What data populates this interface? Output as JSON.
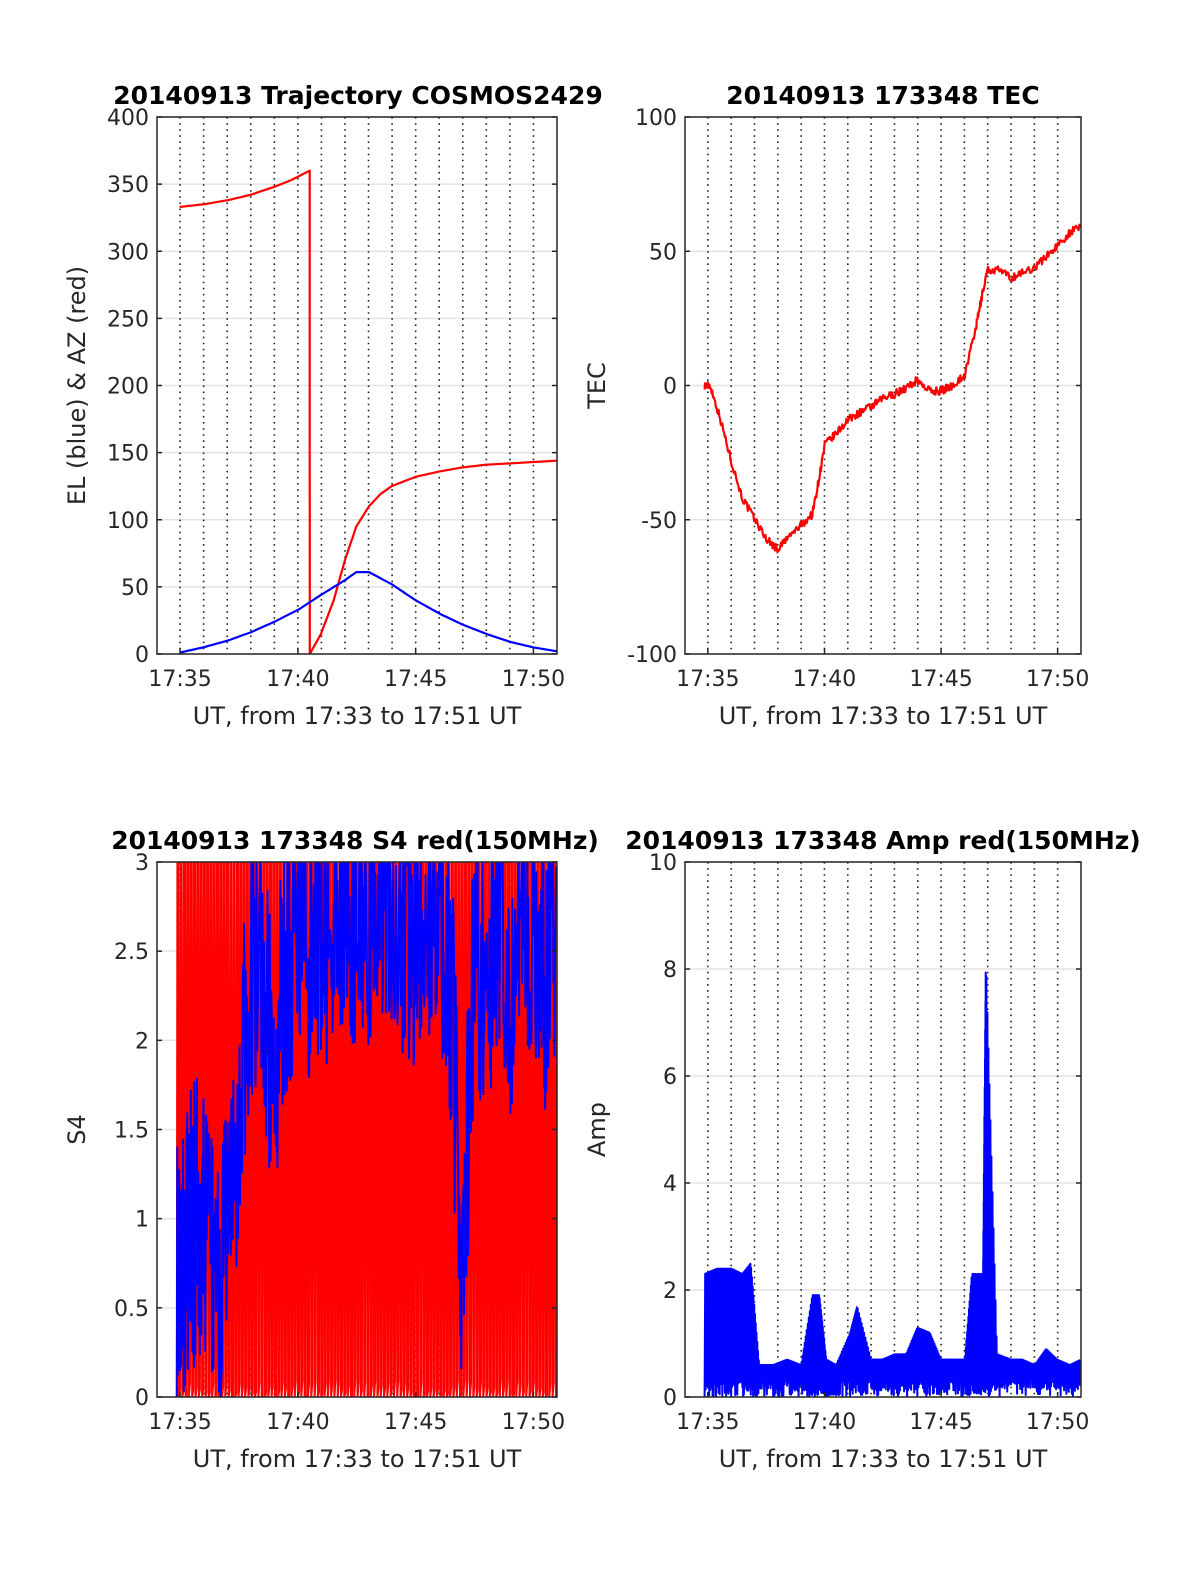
{
  "chart_data": [
    {
      "type": "line",
      "title": "20140913 Trajectory COSMOS2429",
      "xlabel": "UT, from 17:33 to 17:51 UT",
      "ylabel": "EL (blue) & AZ (red)",
      "xlim": [
        17.567,
        17.85
      ],
      "ylim": [
        0,
        400
      ],
      "x_ticks": [
        17.5833,
        17.6667,
        17.75,
        17.8333
      ],
      "x_tick_labels": [
        "17:35",
        "17:40",
        "17:45",
        "17:50"
      ],
      "y_ticks": [
        0,
        50,
        100,
        150,
        200,
        250,
        300,
        350,
        400
      ],
      "y_tick_labels": [
        "0",
        "50",
        "100",
        "150",
        "200",
        "250",
        "300",
        "350",
        "400"
      ],
      "grid": {
        "x": "dotted",
        "y": "solid"
      },
      "series": [
        {
          "color": "#ff0000",
          "x": [
            17.583,
            17.6,
            17.617,
            17.633,
            17.65,
            17.662,
            17.675,
            17.6751,
            17.683,
            17.692,
            17.7,
            17.708,
            17.717,
            17.725,
            17.733,
            17.75,
            17.767,
            17.783,
            17.8,
            17.817,
            17.833,
            17.85
          ],
          "values": [
            333,
            335,
            338,
            342,
            348,
            353,
            360,
            0,
            15,
            40,
            70,
            95,
            110,
            119,
            125,
            132,
            136,
            139,
            141,
            142,
            143,
            144
          ]
        },
        {
          "color": "#0000ff",
          "x": [
            17.583,
            17.6,
            17.617,
            17.633,
            17.65,
            17.667,
            17.683,
            17.7,
            17.708,
            17.717,
            17.733,
            17.75,
            17.767,
            17.783,
            17.8,
            17.817,
            17.833,
            17.85
          ],
          "values": [
            1,
            5,
            10,
            16,
            24,
            33,
            44,
            55,
            61,
            61,
            52,
            40,
            30,
            22,
            15,
            9,
            5,
            2
          ]
        }
      ]
    },
    {
      "type": "line",
      "title": "20140913 173348 TEC",
      "xlabel": "UT, from 17:33 to 17:51 UT",
      "ylabel": "TEC",
      "xlim": [
        17.567,
        17.85
      ],
      "ylim": [
        -100,
        100
      ],
      "x_ticks": [
        17.5833,
        17.6667,
        17.75,
        17.8333
      ],
      "x_tick_labels": [
        "17:35",
        "17:40",
        "17:45",
        "17:50"
      ],
      "y_ticks": [
        -100,
        -50,
        0,
        50,
        100
      ],
      "y_tick_labels": [
        "-100",
        "-50",
        "0",
        "50",
        "100"
      ],
      "grid": {
        "x": "dotted",
        "y": "solid"
      },
      "series": [
        {
          "color": "#ff0000",
          "x": [
            17.581,
            17.585,
            17.592,
            17.6,
            17.608,
            17.617,
            17.625,
            17.633,
            17.642,
            17.65,
            17.658,
            17.662,
            17.667,
            17.675,
            17.683,
            17.692,
            17.7,
            17.708,
            17.717,
            17.725,
            17.733,
            17.742,
            17.75,
            17.758,
            17.767,
            17.775,
            17.778,
            17.783,
            17.792,
            17.8,
            17.808,
            17.817,
            17.825,
            17.833,
            17.842,
            17.85
          ],
          "values": [
            0,
            0,
            -12,
            -28,
            -42,
            -50,
            -57,
            -61,
            -56,
            -52,
            -48,
            -37,
            -22,
            -18,
            -13,
            -10,
            -8,
            -5,
            -3,
            -1,
            2,
            -2,
            -2,
            0,
            4,
            22,
            30,
            43,
            43,
            40,
            42,
            44,
            48,
            52,
            57,
            59
          ]
        }
      ]
    },
    {
      "type": "line",
      "title": "20140913 173348 S4 red(150MHz)",
      "xlabel": "UT, from 17:33 to 17:51 UT",
      "ylabel": "S4",
      "xlim": [
        17.567,
        17.85
      ],
      "ylim": [
        0,
        3
      ],
      "x_ticks": [
        17.5833,
        17.6667,
        17.75,
        17.8333
      ],
      "x_tick_labels": [
        "17:35",
        "17:40",
        "17:45",
        "17:50"
      ],
      "y_ticks": [
        0,
        0.5,
        1,
        1.5,
        2,
        2.5,
        3
      ],
      "y_tick_labels": [
        "0",
        "0.5",
        "1",
        "1.5",
        "2",
        "2.5",
        "3"
      ],
      "grid": {
        "x": "dotted",
        "y": "solid"
      },
      "series": [
        {
          "color": "#ff0000",
          "x_range": [
            17.581,
            17.85
          ],
          "values": [
            0,
            3
          ]
        },
        {
          "color": "#0000ff",
          "x": [
            17.581,
            17.585,
            17.59,
            17.595,
            17.6,
            17.608,
            17.617,
            17.625,
            17.633,
            17.642,
            17.65,
            17.658,
            17.667,
            17.675,
            17.683,
            17.692,
            17.7,
            17.708,
            17.717,
            17.725,
            17.733,
            17.742,
            17.75,
            17.758,
            17.767,
            17.775,
            17.783,
            17.792,
            17.8,
            17.808,
            17.817,
            17.825,
            17.833,
            17.842,
            17.85
          ],
          "values": [
            0.7,
            0.75,
            0.9,
            1.0,
            0.9,
            0.8,
            0.8,
            1.5,
            2.5,
            2.2,
            1.9,
            2.4,
            2.8,
            2.5,
            2.6,
            2.7,
            2.9,
            2.7,
            2.6,
            2.8,
            2.9,
            2.7,
            2.5,
            2.6,
            2.8,
            2.3,
            0.75,
            2.5,
            2.3,
            2.7,
            2.3,
            2.8,
            2.7,
            2.4,
            2.6
          ]
        }
      ]
    },
    {
      "type": "line",
      "title": "20140913 173348 Amp red(150MHz)",
      "xlabel": "UT, from 17:33 to 17:51 UT",
      "ylabel": "Amp",
      "xlim": [
        17.567,
        17.85
      ],
      "ylim": [
        0,
        10
      ],
      "x_ticks": [
        17.5833,
        17.6667,
        17.75,
        17.8333
      ],
      "x_tick_labels": [
        "17:35",
        "17:40",
        "17:45",
        "17:50"
      ],
      "y_ticks": [
        0,
        2,
        4,
        6,
        8,
        10
      ],
      "y_tick_labels": [
        "0",
        "2",
        "4",
        "6",
        "8",
        "10"
      ],
      "grid": {
        "x": "dotted",
        "y": "solid"
      },
      "series": [
        {
          "color": "#0000ff",
          "x": [
            17.581,
            17.59,
            17.6,
            17.608,
            17.614,
            17.62,
            17.63,
            17.64,
            17.65,
            17.658,
            17.663,
            17.668,
            17.675,
            17.685,
            17.69,
            17.7,
            17.708,
            17.717,
            17.725,
            17.733,
            17.742,
            17.75,
            17.758,
            17.767,
            17.772,
            17.78,
            17.782,
            17.79,
            17.8,
            17.808,
            17.817,
            17.825,
            17.833,
            17.842,
            17.85
          ],
          "values": [
            2.3,
            2.4,
            2.4,
            2.3,
            2.5,
            0.6,
            0.6,
            0.7,
            0.6,
            1.9,
            1.9,
            0.7,
            0.6,
            1.2,
            1.7,
            0.7,
            0.7,
            0.8,
            0.8,
            1.3,
            1.2,
            0.7,
            0.7,
            0.7,
            2.3,
            2.3,
            8.2,
            0.8,
            0.7,
            0.7,
            0.6,
            0.9,
            0.7,
            0.6,
            0.7
          ]
        }
      ]
    }
  ]
}
